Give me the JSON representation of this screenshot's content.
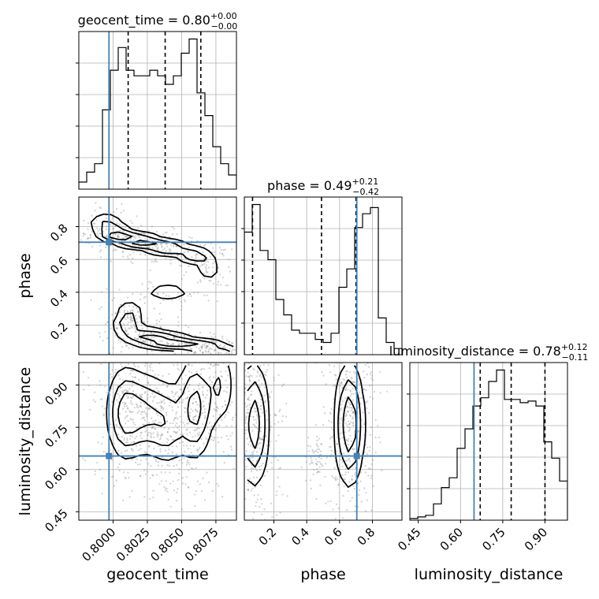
{
  "chart_data": {
    "type": "corner",
    "parameters": [
      "geocent_time",
      "phase",
      "luminosity_distance"
    ],
    "truths": {
      "geocent_time": 0.7997,
      "phase": 0.705,
      "luminosity_distance": 0.648
    },
    "ranges": {
      "geocent_time": [
        0.7975,
        0.809
      ],
      "phase": [
        0.02,
        0.98
      ],
      "luminosity_distance": [
        0.42,
        0.98
      ]
    },
    "titles": {
      "geocent_time": {
        "name": "geocent_time",
        "median": "0.80",
        "plus": "0.00",
        "minus": "0.00"
      },
      "phase": {
        "name": "phase",
        "median": "0.49",
        "plus": "0.21",
        "minus": "0.42"
      },
      "luminosity_distance": {
        "name": "luminosity_distance",
        "median": "0.78",
        "plus": "0.12",
        "minus": "0.11"
      }
    },
    "quantiles": {
      "geocent_time": [
        0.8011,
        0.8038,
        0.8064
      ],
      "phase": [
        0.07,
        0.49,
        0.7
      ],
      "luminosity_distance": [
        0.67,
        0.78,
        0.9
      ]
    },
    "histograms": {
      "geocent_time": [
        0.05,
        0.12,
        0.18,
        0.56,
        0.84,
        1.0,
        0.84,
        0.8,
        0.8,
        0.84,
        0.8,
        0.74,
        0.8,
        0.96,
        1.06,
        0.68,
        0.52,
        0.3,
        0.18,
        0.1
      ],
      "phase": [
        0.8,
        0.98,
        0.68,
        0.62,
        0.36,
        0.26,
        0.16,
        0.14,
        0.14,
        0.1,
        0.08,
        0.14,
        0.44,
        0.56,
        0.83,
        0.92,
        0.96,
        0.24,
        0.08,
        0.04
      ],
      "luminosity_distance": [
        0.01,
        0.02,
        0.03,
        0.1,
        0.2,
        0.26,
        0.44,
        0.56,
        0.7,
        0.75,
        0.85,
        0.92,
        0.74,
        0.74,
        0.72,
        0.73,
        0.7,
        0.48,
        0.38,
        0.24
      ]
    },
    "ticks": {
      "geocent_time": [
        "0.8000",
        "0.8025",
        "0.8050",
        "0.8075"
      ],
      "phase": [
        "0.2",
        "0.4",
        "0.6",
        "0.8"
      ],
      "luminosity_distance": [
        "0.45",
        "0.60",
        "0.75",
        "0.90"
      ]
    },
    "joint_modes": {
      "geocent_time_phase": [
        {
          "x": 0.7995,
          "y": 0.82,
          "sx": 0.0008,
          "sy": 0.04,
          "w": 0.6
        },
        {
          "x": 0.8003,
          "y": 0.75,
          "sx": 0.0008,
          "sy": 0.025,
          "w": 1.2
        },
        {
          "x": 0.802,
          "y": 0.71,
          "sx": 0.001,
          "sy": 0.025,
          "w": 1.2
        },
        {
          "x": 0.804,
          "y": 0.67,
          "sx": 0.001,
          "sy": 0.025,
          "w": 1.0
        },
        {
          "x": 0.806,
          "y": 0.62,
          "sx": 0.0008,
          "sy": 0.03,
          "w": 0.8
        },
        {
          "x": 0.807,
          "y": 0.54,
          "sx": 0.0005,
          "sy": 0.04,
          "w": 0.5
        },
        {
          "x": 0.804,
          "y": 0.4,
          "sx": 0.0012,
          "sy": 0.04,
          "w": 0.4
        },
        {
          "x": 0.8012,
          "y": 0.28,
          "sx": 0.0006,
          "sy": 0.04,
          "w": 0.6
        },
        {
          "x": 0.801,
          "y": 0.2,
          "sx": 0.0006,
          "sy": 0.03,
          "w": 0.8
        },
        {
          "x": 0.8025,
          "y": 0.13,
          "sx": 0.0012,
          "sy": 0.03,
          "w": 1.0
        },
        {
          "x": 0.8045,
          "y": 0.09,
          "sx": 0.0012,
          "sy": 0.025,
          "w": 1.2
        },
        {
          "x": 0.8068,
          "y": 0.06,
          "sx": 0.001,
          "sy": 0.025,
          "w": 1.0
        },
        {
          "x": 0.8085,
          "y": 0.04,
          "sx": 0.0005,
          "sy": 0.02,
          "w": 0.4
        }
      ],
      "geocent_time_luminosity_distance": [
        {
          "x": 0.8008,
          "y": 0.8,
          "sx": 0.0007,
          "sy": 0.09,
          "w": 1.0
        },
        {
          "x": 0.8022,
          "y": 0.8,
          "sx": 0.001,
          "sy": 0.08,
          "w": 1.0
        },
        {
          "x": 0.804,
          "y": 0.76,
          "sx": 0.0008,
          "sy": 0.08,
          "w": 0.8
        },
        {
          "x": 0.806,
          "y": 0.82,
          "sx": 0.0007,
          "sy": 0.1,
          "w": 1.2
        },
        {
          "x": 0.8078,
          "y": 0.9,
          "sx": 0.0006,
          "sy": 0.08,
          "w": 0.6
        }
      ],
      "phase_luminosity_distance": [
        {
          "x": 0.08,
          "y": 0.76,
          "sx": 0.05,
          "sy": 0.12,
          "w": 1.2
        },
        {
          "x": 0.66,
          "y": 0.76,
          "sx": 0.05,
          "sy": 0.12,
          "w": 1.3
        },
        {
          "x": 0.45,
          "y": 0.63,
          "sx": 0.02,
          "sy": 0.03,
          "w": 0.15
        }
      ]
    }
  }
}
